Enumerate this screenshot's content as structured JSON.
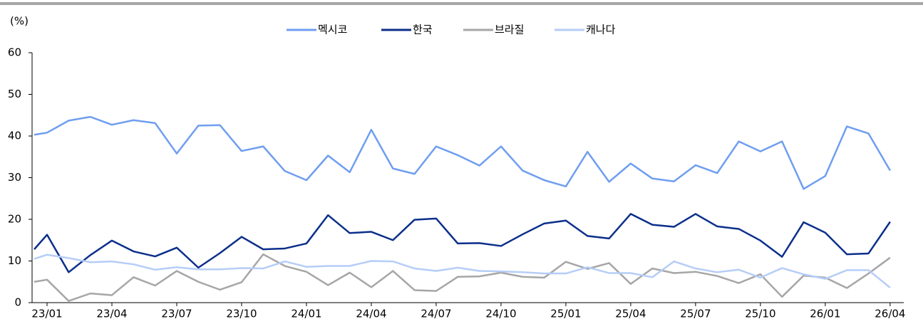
{
  "chart_data": {
    "type": "line",
    "y_label": "(%)",
    "categories": [
      null,
      "23/01",
      null,
      null,
      "23/04",
      null,
      null,
      "23/07",
      null,
      null,
      "23/10",
      null,
      null,
      "24/01",
      null,
      null,
      "24/04",
      null,
      null,
      "24/07",
      null,
      null,
      "24/10",
      null,
      null,
      "25/01",
      null,
      null,
      "25/04",
      null,
      null,
      "25/07",
      null,
      null,
      "25/10",
      null,
      null,
      "26/01",
      null,
      null,
      "26/04"
    ],
    "series": [
      {
        "name": "멕시코",
        "color": "#6f9ef0",
        "values": [
          40.3,
          40.8,
          43.7,
          44.6,
          42.7,
          43.8,
          43.1,
          35.8,
          42.5,
          42.6,
          36.4,
          37.5,
          31.6,
          29.4,
          35.3,
          31.3,
          41.5,
          32.2,
          30.9,
          37.5,
          35.4,
          32.9,
          37.5,
          31.7,
          29.4,
          27.9,
          36.2,
          29.0,
          33.4,
          29.8,
          29.1,
          33.0,
          31.1,
          38.7,
          36.3,
          38.7,
          27.3,
          30.4,
          42.3,
          40.6,
          31.7
        ]
      },
      {
        "name": "한국",
        "color": "#0b2f8a",
        "values": [
          12.8,
          16.3,
          7.3,
          11.4,
          14.9,
          12.3,
          11.1,
          13.2,
          8.4,
          11.9,
          15.8,
          12.8,
          13.0,
          14.2,
          21.0,
          16.7,
          17.0,
          15.0,
          19.9,
          20.2,
          14.2,
          14.3,
          13.6,
          16.4,
          19.0,
          19.7,
          16.0,
          15.4,
          21.3,
          18.7,
          18.2,
          21.3,
          18.3,
          17.7,
          14.9,
          11.0,
          19.3,
          16.8,
          11.6,
          11.8,
          19.4
        ]
      },
      {
        "name": "브라질",
        "color": "#a6a6a6",
        "values": [
          5.0,
          5.5,
          0.4,
          2.2,
          1.8,
          6.1,
          4.1,
          7.6,
          5.0,
          3.1,
          4.9,
          11.6,
          8.8,
          7.4,
          4.2,
          7.2,
          3.7,
          7.6,
          3.0,
          2.8,
          6.2,
          6.3,
          7.2,
          6.2,
          6.0,
          9.8,
          8.1,
          9.5,
          4.5,
          8.2,
          7.1,
          7.4,
          6.4,
          4.7,
          6.8,
          1.4,
          6.5,
          6.0,
          3.5,
          7.0,
          10.8
        ]
      },
      {
        "name": "캐나다",
        "color": "#b6cdf7",
        "values": [
          10.5,
          11.5,
          10.7,
          9.7,
          9.9,
          9.2,
          7.9,
          8.5,
          8.0,
          8.0,
          8.3,
          8.2,
          9.9,
          8.6,
          8.8,
          8.8,
          10.0,
          9.9,
          8.2,
          7.6,
          8.4,
          7.6,
          7.5,
          7.3,
          7.0,
          7.0,
          8.5,
          7.1,
          7.1,
          6.1,
          9.9,
          8.2,
          7.3,
          7.9,
          6.0,
          8.3,
          6.8,
          5.7,
          7.8,
          7.8,
          3.6
        ]
      }
    ],
    "ylim": [
      0,
      60
    ],
    "yticks": [
      0,
      10,
      20,
      30,
      40,
      50,
      60
    ]
  }
}
